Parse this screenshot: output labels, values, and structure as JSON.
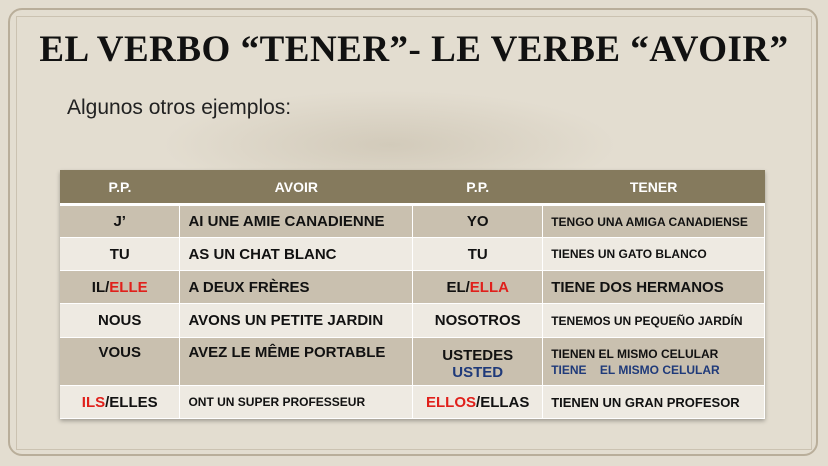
{
  "title": "EL VERBO “TENER”- LE VERBE “AVOIR”",
  "subtitle": "Algunos otros ejemplos:",
  "colors": {
    "header": "#857a5d",
    "red": "#e0201b",
    "blue": "#1f3a7a"
  },
  "table": {
    "headers": [
      "P.P.",
      "AVOIR",
      "P.P.",
      "TENER"
    ],
    "rows": [
      {
        "fr_pp": "J’",
        "avoir": "AI UNE AMIE CANADIENNE",
        "es_pp": "YO",
        "tener": "TENGO UNA AMIGA CANADIENSE"
      },
      {
        "fr_pp": "TU",
        "avoir": "AS UN CHAT BLANC",
        "es_pp": "TU",
        "tener": "TIENES UN GATO BLANCO"
      },
      {
        "fr_pp_a": "IL/",
        "fr_pp_b": "ELLE",
        "avoir": "A DEUX FRÈRES",
        "es_pp_a": "EL/",
        "es_pp_b": "ELLA",
        "tener": "TIENE DOS HERMANOS"
      },
      {
        "fr_pp": "NOUS",
        "avoir": "AVONS UN PETITE JARDIN",
        "es_pp": "NOSOTROS",
        "tener": "TENEMOS UN PEQUEÑO JARDÍN"
      },
      {
        "fr_pp": "VOUS",
        "avoir": "AVEZ LE MÊME PORTABLE",
        "es_pp": "USTEDES",
        "es_pp_2": "USTED",
        "tener": "TIENEN EL MISMO CELULAR",
        "tener_2a": "TIENE",
        "tener_2b": "EL MISMO CELULAR"
      },
      {
        "fr_pp_a": "ILS",
        "fr_pp_b": "/ELLES",
        "avoir": "ONT UN SUPER PROFESSEUR",
        "es_pp_a": "ELLOS",
        "es_pp_b": "/ELLAS",
        "tener": "TIENEN UN GRAN PROFESOR"
      }
    ]
  }
}
